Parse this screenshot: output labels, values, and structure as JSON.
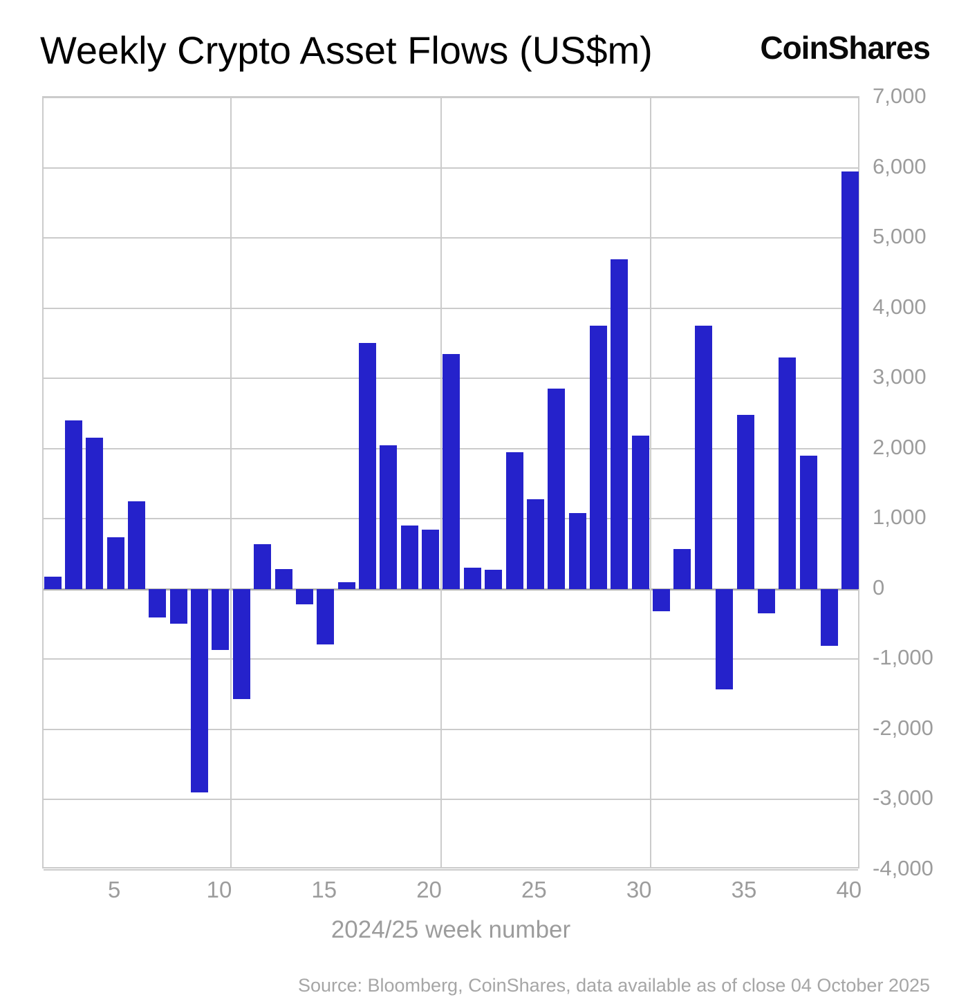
{
  "header": {
    "title": "Weekly Crypto Asset Flows (US$m)",
    "logo_text": "CoinShares"
  },
  "chart_data": {
    "type": "bar",
    "title": "Weekly Crypto Asset Flows (US$m)",
    "xlabel": "2024/25 week number",
    "ylabel": "",
    "x": [
      2,
      3,
      4,
      5,
      6,
      7,
      8,
      9,
      10,
      11,
      12,
      13,
      14,
      15,
      16,
      17,
      18,
      19,
      20,
      21,
      22,
      23,
      24,
      25,
      26,
      27,
      28,
      29,
      30,
      31,
      32,
      33,
      34,
      35,
      36,
      37,
      38,
      39,
      40
    ],
    "values": [
      180,
      2400,
      2150,
      740,
      1250,
      -410,
      -490,
      -2900,
      -870,
      -1570,
      640,
      280,
      -220,
      -790,
      100,
      3500,
      2050,
      900,
      850,
      3350,
      300,
      270,
      1950,
      1280,
      2850,
      1080,
      3750,
      4700,
      2180,
      -320,
      570,
      3750,
      -1430,
      2480,
      -350,
      3300,
      1900,
      -810,
      5950
    ],
    "ylim": [
      -4000,
      7000
    ],
    "ytick_step": 1000,
    "ytick_labels": [
      "7,000",
      "6,000",
      "5,000",
      "4,000",
      "3,000",
      "2,000",
      "1,000",
      "0",
      "-1,000",
      "-2,000",
      "-3,000",
      "-4,000"
    ],
    "ytick_values": [
      7000,
      6000,
      5000,
      4000,
      3000,
      2000,
      1000,
      0,
      -1000,
      -2000,
      -3000,
      -4000
    ],
    "xtick_labels": [
      "5",
      "10",
      "15",
      "20",
      "25",
      "30",
      "35",
      "40"
    ],
    "xtick_values": [
      5,
      10,
      15,
      20,
      25,
      30,
      35,
      40
    ],
    "x_gridlines_at": [
      10.5,
      20.5,
      30.5
    ],
    "xaxis_range_weeks": [
      1.57,
      40.5
    ],
    "grid": true,
    "legend": "none",
    "bar_color": "#2522cb"
  },
  "footer": {
    "source": "Source: Bloomberg, CoinShares, data available as of close 04 October 2025"
  }
}
